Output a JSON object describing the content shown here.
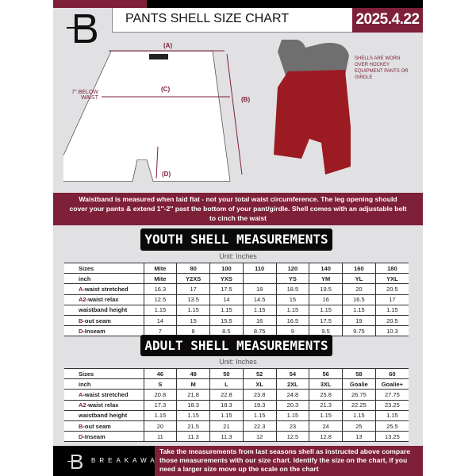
{
  "header": {
    "title": "PANTS SHELL SIZE CHART",
    "date": "2025.4.22"
  },
  "diagram": {
    "label_a": "(A)",
    "label_b": "(B)",
    "label_c": "(C)",
    "label_d": "(D)",
    "below_waist": "7'' BELOW WAIST",
    "note": "SHELLS ARE WORN OVER HOCKEY EQUIPMENT PANTS OR GIRDLE"
  },
  "info": "Waistband is measured when laid flat - not your total waist circumference. The leg opening should cover your pants & extend 1''-2'' past the bottom of your pant/girdle. Shell comes with an adjustable belt to cinch the waist",
  "colors": {
    "accent": "#7d2038",
    "panel": "#e1e1e4"
  },
  "youth": {
    "heading": "YOUTH SHELL MEASUREMENTS",
    "unit": "Unit: Inches",
    "rows": [
      {
        "p": "",
        "l": "Sizes",
        "v": [
          "Mite",
          "80",
          "100",
          "110",
          "120",
          "140",
          "160",
          "180"
        ]
      },
      {
        "p": "",
        "l": "inch",
        "v": [
          "Mite",
          "Y2XS",
          "YXS",
          "",
          "YS",
          "YM",
          "YL",
          "YXL"
        ]
      },
      {
        "p": "A",
        "l": "-waist stretched",
        "v": [
          "16.3",
          "17",
          "17.5",
          "18",
          "18.5",
          "19.5",
          "20",
          "20.5"
        ]
      },
      {
        "p": "A2",
        "l": "-waist relax",
        "v": [
          "12.5",
          "13.5",
          "14",
          "14.5",
          "15",
          "16",
          "16.5",
          "17"
        ]
      },
      {
        "p": "",
        "l": "waistband height",
        "v": [
          "1.15",
          "1.15",
          "1.15",
          "1.15",
          "1.15",
          "1.15",
          "1.15",
          "1.15"
        ]
      },
      {
        "p": "B",
        "l": "-out seam",
        "v": [
          "14",
          "15",
          "15.5",
          "16",
          "16.5",
          "17.5",
          "19",
          "20.5"
        ]
      },
      {
        "p": "D",
        "l": "-Inseam",
        "v": [
          "7",
          "8",
          "8.5",
          "8.75",
          "9",
          "9.5",
          "9.75",
          "10.3"
        ]
      }
    ]
  },
  "adult": {
    "heading": "ADULT SHELL MEASUREMENTS",
    "unit": "Unit: Inches",
    "rows": [
      {
        "p": "",
        "l": "Sizes",
        "v": [
          "46",
          "48",
          "50",
          "52",
          "54",
          "56",
          "58",
          "60"
        ]
      },
      {
        "p": "",
        "l": "inch",
        "v": [
          "S",
          "M",
          "L",
          "XL",
          "2XL",
          "3XL",
          "Goalie",
          "Goalie+"
        ]
      },
      {
        "p": "A",
        "l": "-waist stretched",
        "v": [
          "20.8",
          "21.8",
          "22.8",
          "23.8",
          "24.8",
          "25.8",
          "26.75",
          "27.75"
        ]
      },
      {
        "p": "A2",
        "l": "-waist relax",
        "v": [
          "17.3",
          "18.3",
          "18.3",
          "19.3",
          "20.3",
          "21.3",
          "22.25",
          "23.25"
        ]
      },
      {
        "p": "",
        "l": "waistband height",
        "v": [
          "1.15",
          "1.15",
          "1.15",
          "1.15",
          "1.15",
          "1.15",
          "1.15",
          "1.15"
        ]
      },
      {
        "p": "B",
        "l": "-out seam",
        "v": [
          "20",
          "21.5",
          "21",
          "22.3",
          "23",
          "24",
          "25",
          "25.5"
        ]
      },
      {
        "p": "D",
        "l": "-Inseam",
        "v": [
          "11",
          "11.3",
          "11.3",
          "12",
          "12.5",
          "12.8",
          "13",
          "13.25"
        ]
      }
    ]
  },
  "footer": {
    "brand": "BREAKAWAY",
    "text": "Take the measurements from last seasons shell as instructed above compare those measurements  with our size chart. Identify the size on the chart, if you need a larger size move up the scale on the chart"
  }
}
